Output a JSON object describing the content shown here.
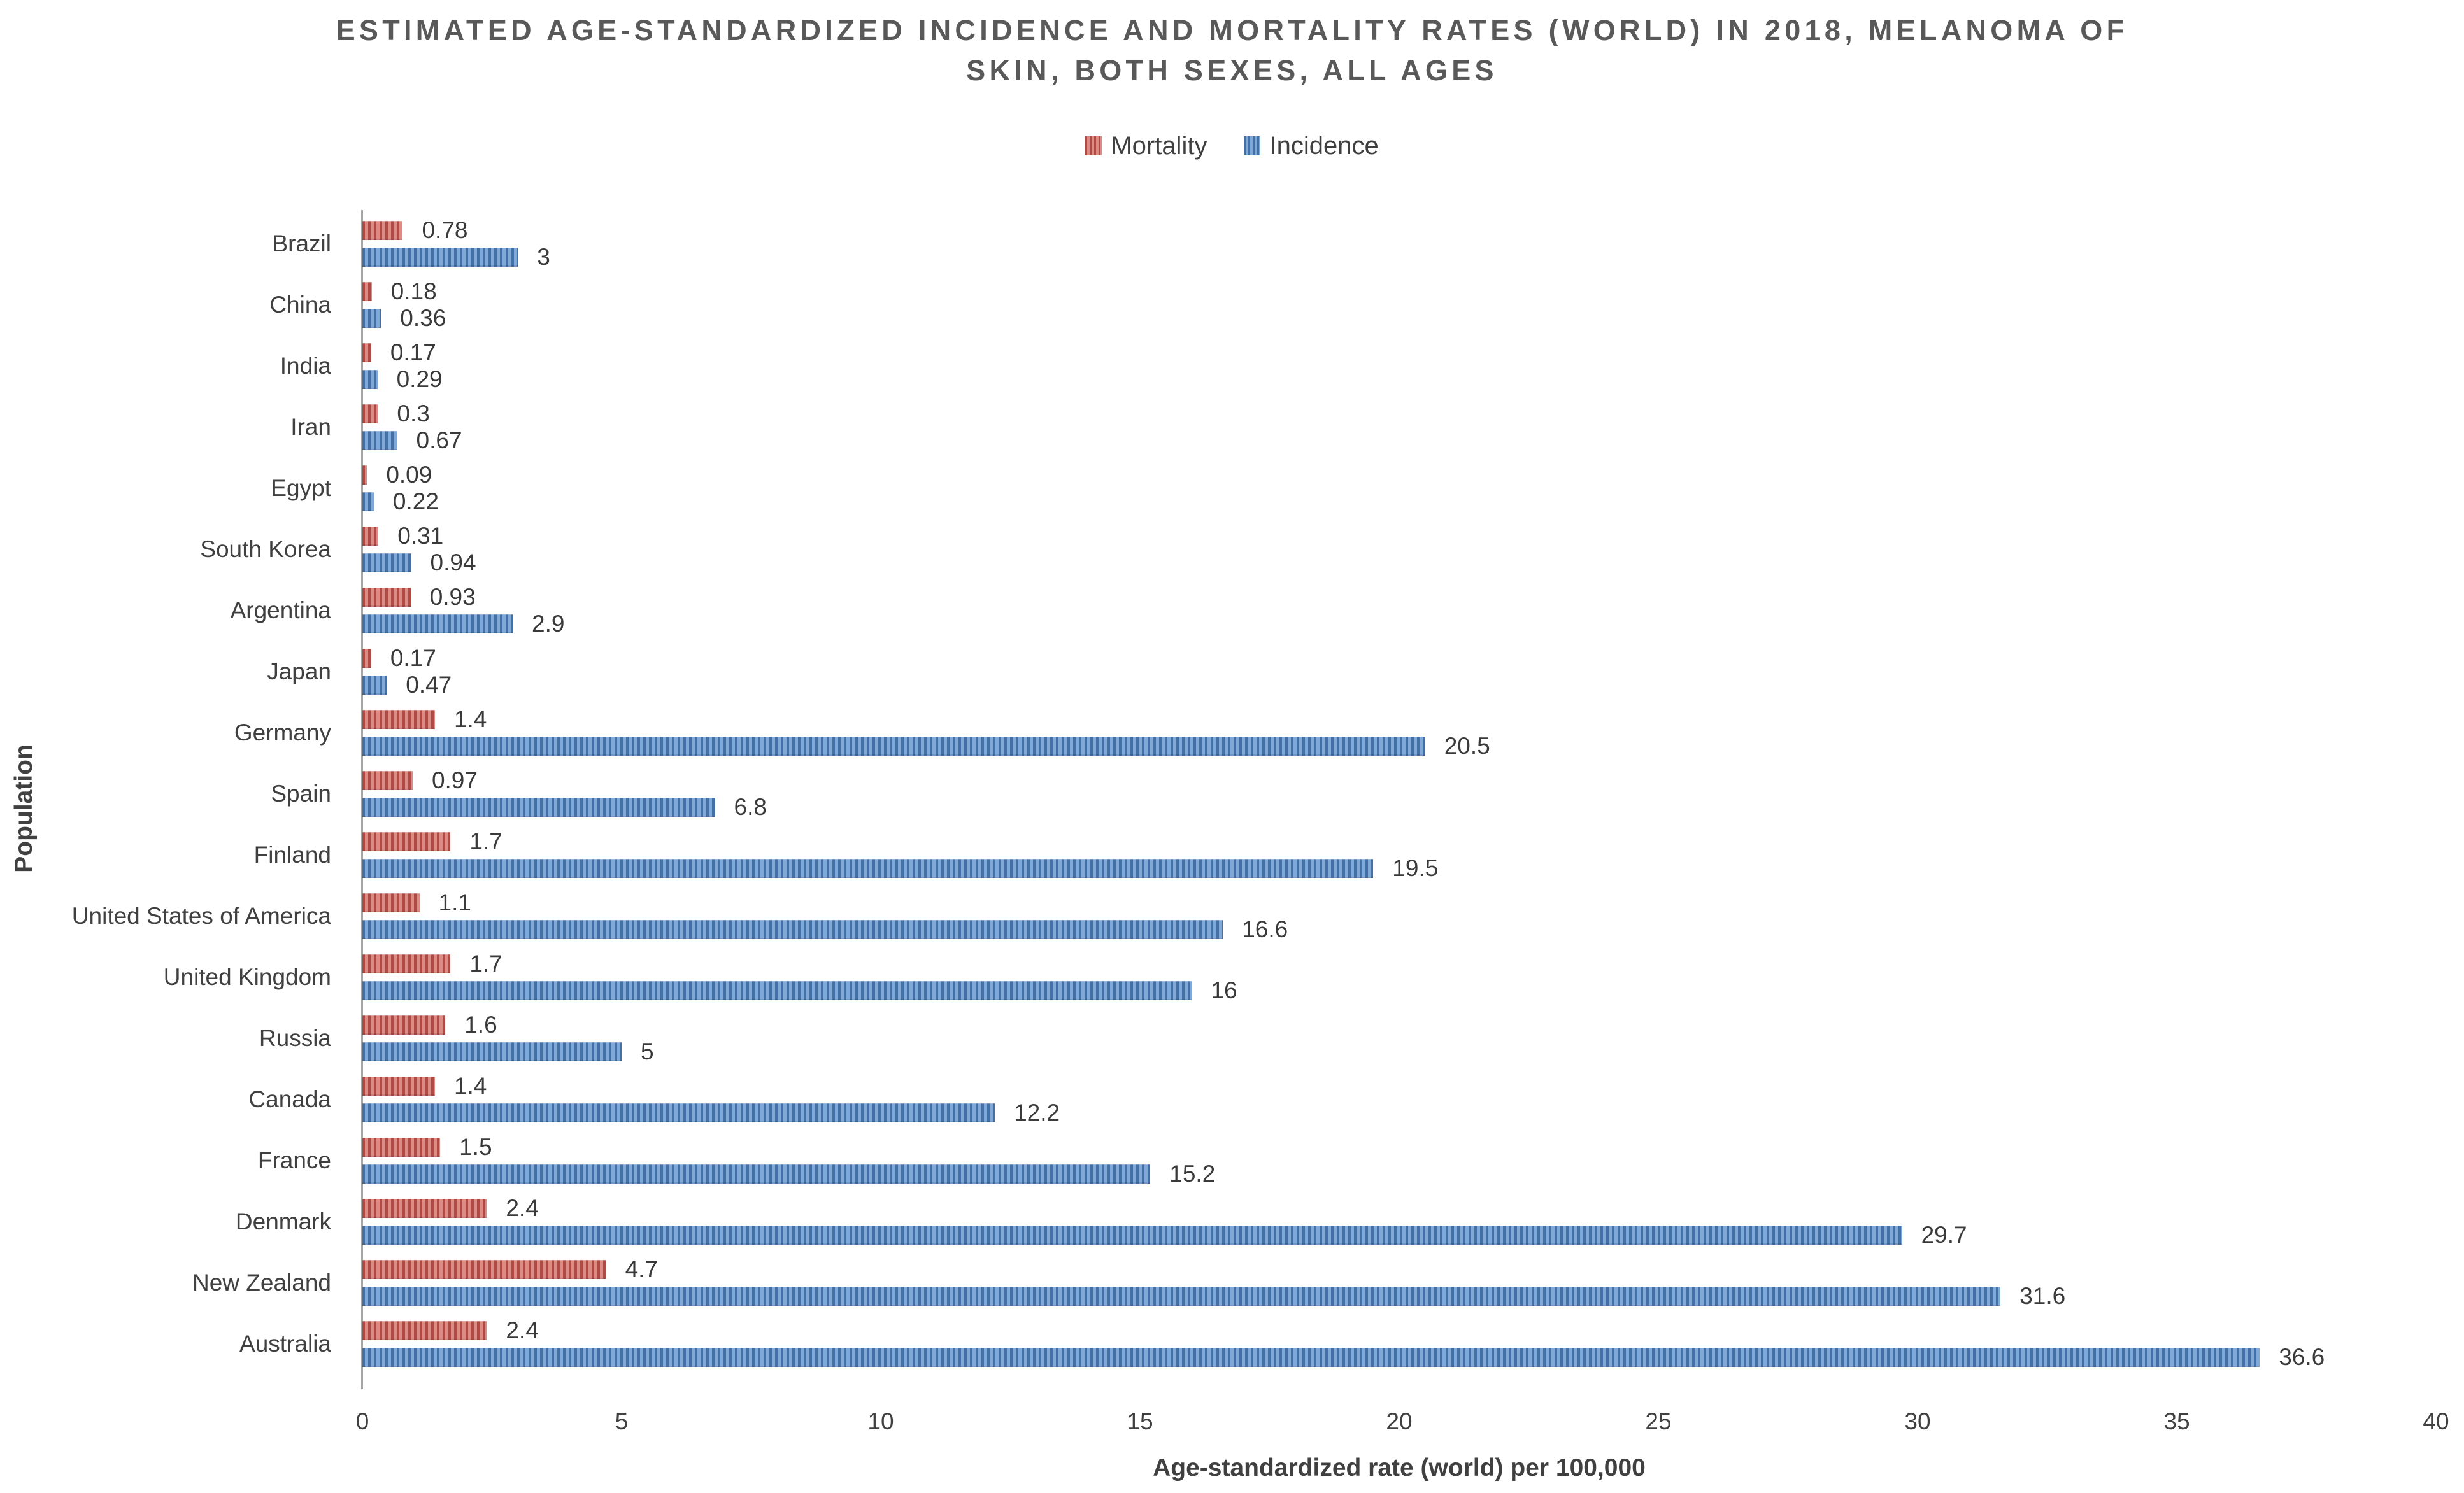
{
  "header": {
    "title_line1": "ESTIMATED AGE-STANDARDIZED INCIDENCE AND MORTALITY RATES (WORLD) IN 2018, MELANOMA OF",
    "title_line2": "SKIN, BOTH SEXES, ALL AGES"
  },
  "legend": {
    "mortality_label": "Mortality",
    "incidence_label": "Incidence"
  },
  "axes": {
    "x_title": "Age-standardized rate (world) per 100,000",
    "y_title": "Population",
    "x_ticks": [
      "0",
      "5",
      "10",
      "15",
      "20",
      "25",
      "30",
      "35",
      "40"
    ],
    "x_tick_values": [
      0,
      5,
      10,
      15,
      20,
      25,
      30,
      35,
      40
    ]
  },
  "colors": {
    "mortality_dark": "#b04a44",
    "mortality_light": "#dd8c85",
    "incidence_dark": "#4370a6",
    "incidence_light": "#80a9d7",
    "axis_line": "#a6a6a6",
    "title_text": "#595959",
    "body_text": "#404040"
  },
  "chart_data": {
    "type": "bar",
    "orientation": "horizontal",
    "title": "ESTIMATED AGE-STANDARDIZED INCIDENCE AND MORTALITY RATES (WORLD) IN 2018, MELANOMA OF SKIN, BOTH SEXES, ALL AGES",
    "xlabel": "Age-standardized rate (world) per 100,000",
    "ylabel": "Population",
    "xlim": [
      0,
      40
    ],
    "grid": false,
    "legend_position": "top",
    "categories": [
      "Brazil",
      "China",
      "India",
      "Iran",
      "Egypt",
      "South Korea",
      "Argentina",
      "Japan",
      "Germany",
      "Spain",
      "Finland",
      "United States of America",
      "United Kingdom",
      "Russia",
      "Canada",
      "France",
      "Denmark",
      "New Zealand",
      "Australia"
    ],
    "series": [
      {
        "name": "Mortality",
        "color": "#b04a44",
        "values": [
          0.78,
          0.18,
          0.17,
          0.3,
          0.09,
          0.31,
          0.93,
          0.17,
          1.4,
          0.97,
          1.7,
          1.1,
          1.7,
          1.6,
          1.4,
          1.5,
          2.4,
          4.7,
          2.4
        ],
        "labels": [
          "0.78",
          "0.18",
          "0.17",
          "0.3",
          "0.09",
          "0.31",
          "0.93",
          "0.17",
          "1.4",
          "0.97",
          "1.7",
          "1.1",
          "1.7",
          "1.6",
          "1.4",
          "1.5",
          "2.4",
          "4.7",
          "2.4"
        ]
      },
      {
        "name": "Incidence",
        "color": "#4370a6",
        "values": [
          3,
          0.36,
          0.29,
          0.67,
          0.22,
          0.94,
          2.9,
          0.47,
          20.5,
          6.8,
          19.5,
          16.6,
          16,
          5,
          12.2,
          15.2,
          29.7,
          31.6,
          36.6
        ],
        "labels": [
          "3",
          "0.36",
          "0.29",
          "0.67",
          "0.22",
          "0.94",
          "2.9",
          "0.47",
          "20.5",
          "6.8",
          "19.5",
          "16.6",
          "16",
          "5",
          "12.2",
          "15.2",
          "29.7",
          "31.6",
          "36.6"
        ]
      }
    ]
  }
}
